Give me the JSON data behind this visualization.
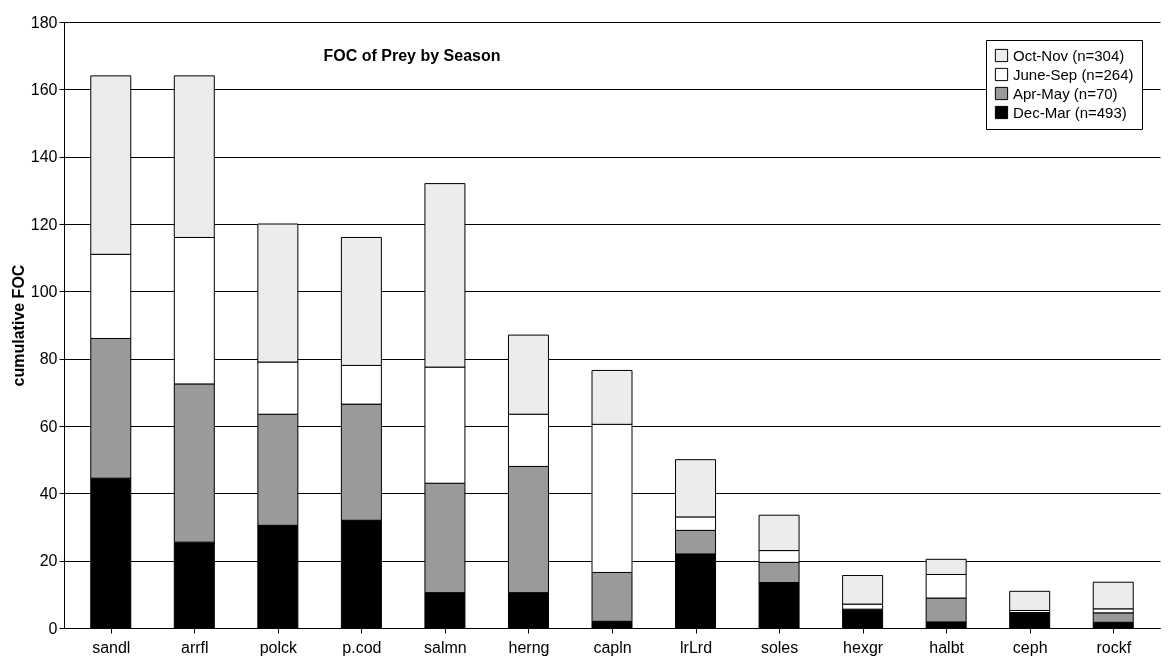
{
  "chart_data": {
    "type": "bar",
    "stacked": true,
    "title": "FOC of Prey by Season",
    "ylabel": "cumulative FOC",
    "categories": [
      "sandl",
      "arrfl",
      "polck",
      "p.cod",
      "salmn",
      "herng",
      "capln",
      "lrLrd",
      "soles",
      "hexgr",
      "halbt",
      "ceph",
      "rockf"
    ],
    "series": [
      {
        "name": "Dec-Mar (n=493)",
        "color": "#000000",
        "values": [
          44.5,
          25.5,
          30.5,
          32,
          10.5,
          10.5,
          2,
          22,
          13.5,
          5.6,
          1.8,
          4.6,
          1.7
        ]
      },
      {
        "name": "Apr-May (n=70)",
        "color": "#9a9a9a",
        "values": [
          41.5,
          47,
          33,
          34.5,
          32.5,
          37.5,
          14.5,
          7,
          6,
          null,
          7.1,
          null,
          2.8
        ]
      },
      {
        "name": "June-Sep (n=264)",
        "color": "#ffffff",
        "values": [
          25,
          43.5,
          15.5,
          11.5,
          34.5,
          15.5,
          44,
          4,
          3.5,
          1.5,
          7,
          0.6,
          1.2
        ]
      },
      {
        "name": "Oct-Nov (n=304)",
        "color": "#ececec",
        "values": [
          53,
          48,
          41,
          38,
          54.5,
          23.5,
          16,
          17,
          10.5,
          8.5,
          4.5,
          5.7,
          7.9
        ]
      }
    ],
    "ylim": [
      0,
      180
    ],
    "yticks": [
      0,
      20,
      40,
      60,
      80,
      100,
      120,
      140,
      160,
      180
    ],
    "grid": "y",
    "legend": "top right"
  }
}
